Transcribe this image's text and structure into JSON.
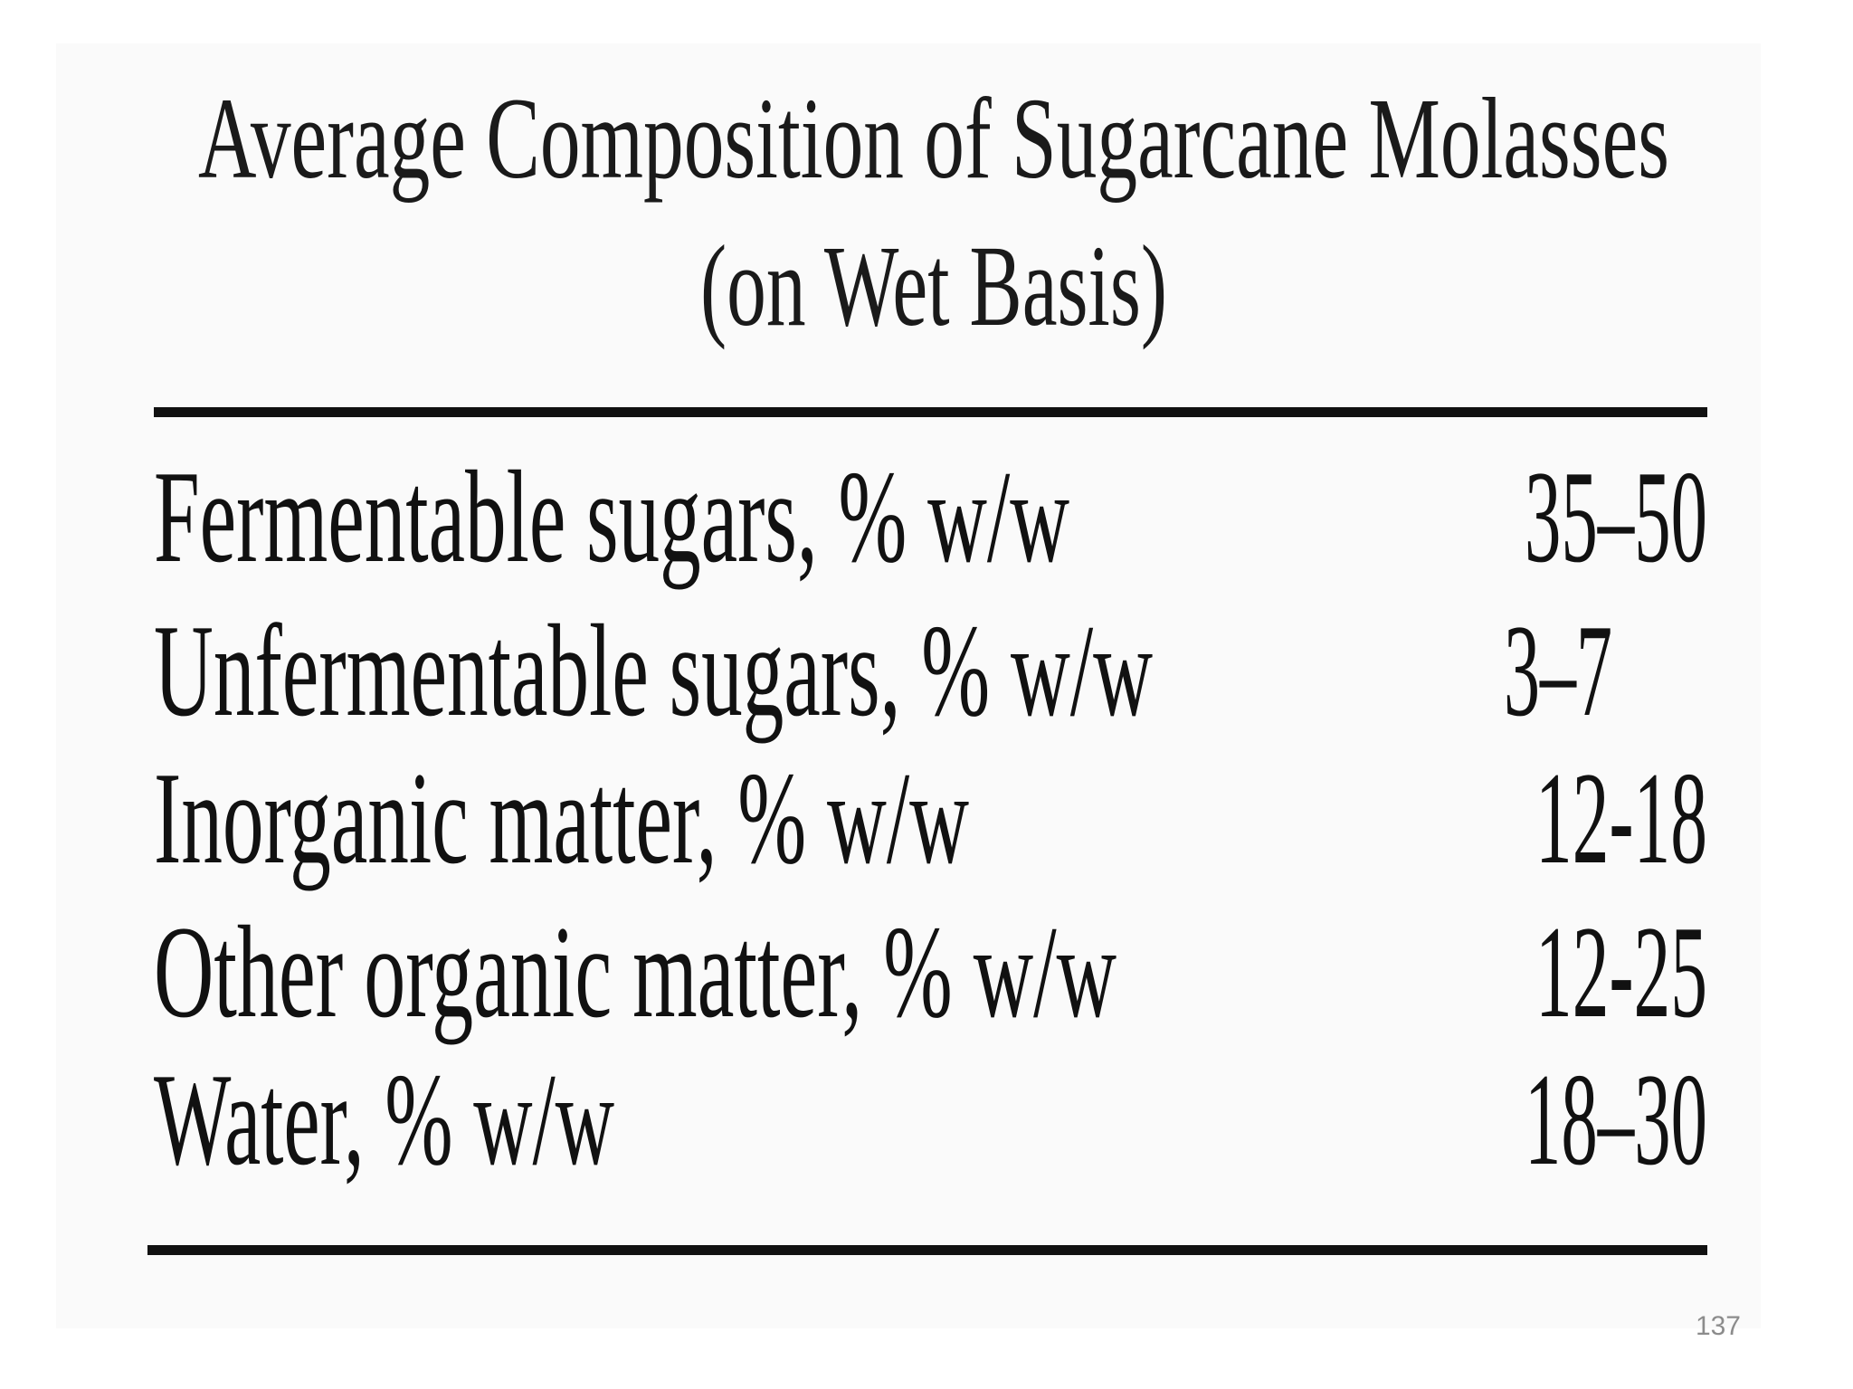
{
  "header": {
    "title_lines": [
      "Average Composition of Sugarcane Molasses",
      "(on Wet Basis)"
    ]
  },
  "table": {
    "rows": [
      [
        "Fermentable sugars, % w/w",
        "35–50"
      ],
      [
        "Unfermentable sugars, % w/w",
        "3–7"
      ],
      [
        "Inorganic matter, % w/w",
        "12-18"
      ],
      [
        "Other organic matter, % w/w",
        "12-25"
      ],
      [
        "Water, % w/w",
        "18–30"
      ]
    ]
  },
  "footer": {
    "page_number": "137"
  }
}
